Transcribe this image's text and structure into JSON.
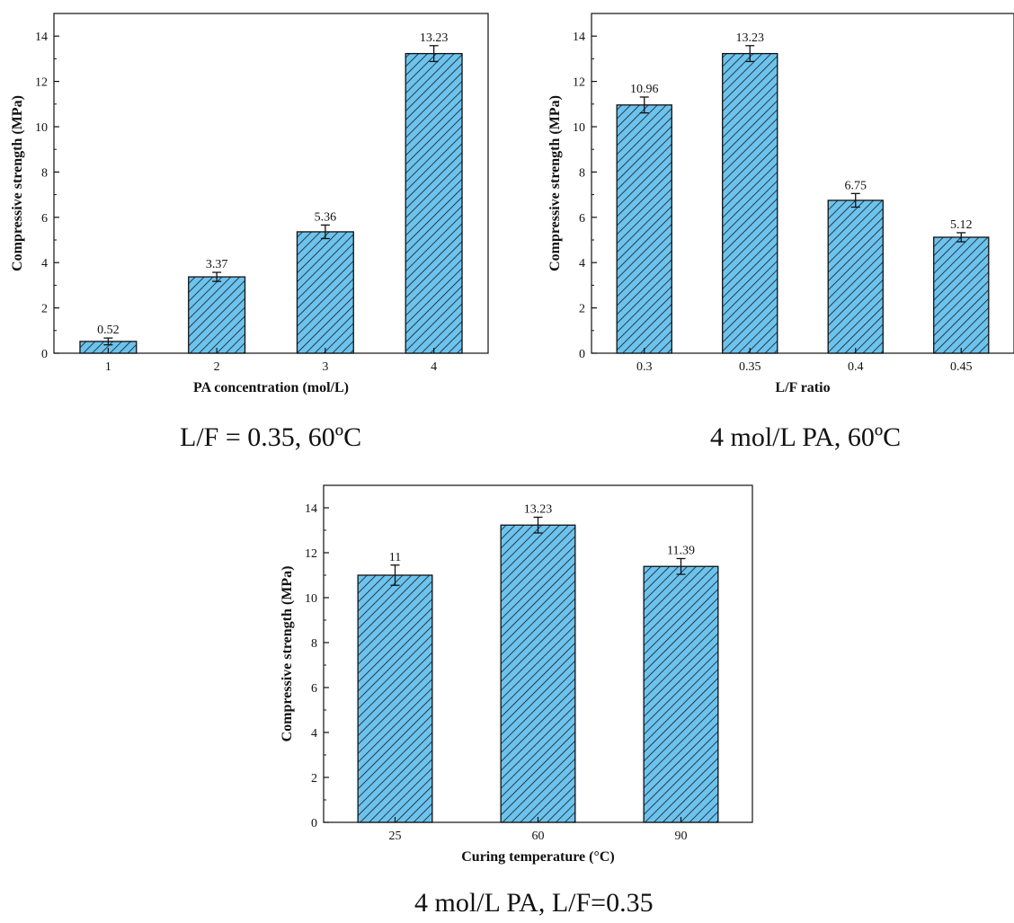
{
  "colors": {
    "bar_fill": "#6CC3EE",
    "hatch": "#1a1a1a",
    "axis": "#111111"
  },
  "captions": {
    "a": "L/F = 0.35, 60ºC",
    "b": "4 mol/L PA, 60ºC",
    "c": "4 mol/L PA, L/F=0.35"
  },
  "chart_data": [
    {
      "type": "bar",
      "categories": [
        "1",
        "2",
        "3",
        "4"
      ],
      "values": [
        0.52,
        3.37,
        5.36,
        13.23
      ],
      "errors": [
        0.15,
        0.2,
        0.3,
        0.35
      ],
      "data_labels": [
        "0.52",
        "3.37",
        "5.36",
        "13.23"
      ],
      "xlabel": "PA concentration (mol/L)",
      "ylabel": "Compressive strength (MPa)",
      "ylim": [
        0,
        15
      ],
      "yticks": [
        0,
        2,
        4,
        6,
        8,
        10,
        12,
        14
      ],
      "grid": false,
      "pattern": "diagonal hatch"
    },
    {
      "type": "bar",
      "categories": [
        "0.3",
        "0.35",
        "0.4",
        "0.45"
      ],
      "values": [
        10.96,
        13.23,
        6.75,
        5.12
      ],
      "errors": [
        0.35,
        0.35,
        0.3,
        0.2
      ],
      "data_labels": [
        "10.96",
        "13.23",
        "6.75",
        "5.12"
      ],
      "xlabel": "L/F ratio",
      "ylabel": "Compressive strength (MPa)",
      "ylim": [
        0,
        15
      ],
      "yticks": [
        0,
        2,
        4,
        6,
        8,
        10,
        12,
        14
      ],
      "grid": false,
      "pattern": "diagonal hatch"
    },
    {
      "type": "bar",
      "categories": [
        "25",
        "60",
        "90"
      ],
      "values": [
        11,
        13.23,
        11.39
      ],
      "errors": [
        0.45,
        0.35,
        0.35
      ],
      "data_labels": [
        "11",
        "13.23",
        "11.39"
      ],
      "xlabel": "Curing temperature (°C)",
      "ylabel": "Compressive strength (MPa)",
      "ylim": [
        0,
        15
      ],
      "yticks": [
        0,
        2,
        4,
        6,
        8,
        10,
        12,
        14
      ],
      "grid": false,
      "pattern": "diagonal hatch"
    }
  ]
}
